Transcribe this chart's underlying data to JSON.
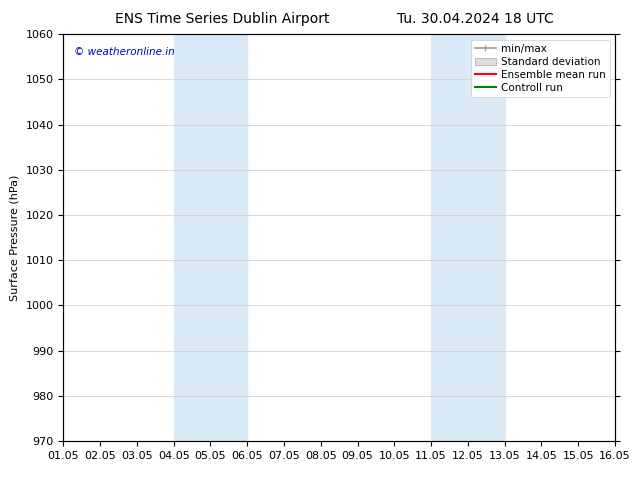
{
  "title_left": "ENS Time Series Dublin Airport",
  "title_right": "Tu. 30.04.2024 18 UTC",
  "ylabel": "Surface Pressure (hPa)",
  "xlabel": "",
  "ylim": [
    970,
    1060
  ],
  "yticks": [
    970,
    980,
    990,
    1000,
    1010,
    1020,
    1030,
    1040,
    1050,
    1060
  ],
  "xtick_labels": [
    "01.05",
    "02.05",
    "03.05",
    "04.05",
    "05.05",
    "06.05",
    "07.05",
    "08.05",
    "09.05",
    "10.05",
    "11.05",
    "12.05",
    "13.05",
    "14.05",
    "15.05",
    "16.05"
  ],
  "xlim": [
    0,
    15
  ],
  "shaded_bands": [
    {
      "xmin": 3,
      "xmax": 5,
      "color": "#daeaf7"
    },
    {
      "xmin": 10,
      "xmax": 12,
      "color": "#daeaf7"
    }
  ],
  "watermark": "© weatheronline.in",
  "watermark_color": "#0000cc",
  "legend_entries": [
    {
      "label": "min/max",
      "color": "#aaaaaa"
    },
    {
      "label": "Standard deviation",
      "color": "#cccccc"
    },
    {
      "label": "Ensemble mean run",
      "color": "red"
    },
    {
      "label": "Controll run",
      "color": "green"
    }
  ],
  "bg_color": "#ffffff",
  "plot_bg_color": "#ffffff",
  "grid_color": "#cccccc",
  "title_fontsize": 10,
  "axis_fontsize": 8,
  "tick_fontsize": 8,
  "legend_fontsize": 7.5
}
